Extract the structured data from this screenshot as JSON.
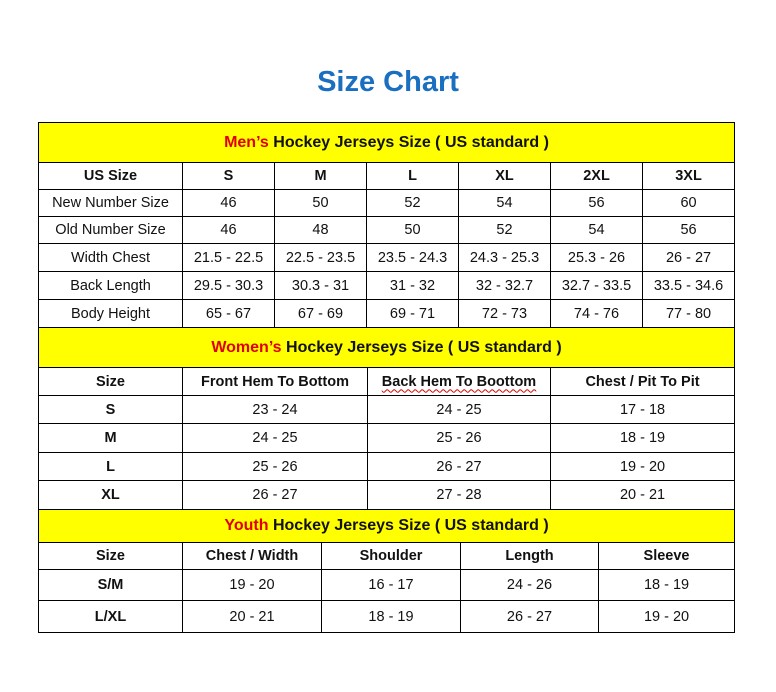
{
  "title": "Size Chart",
  "men": {
    "title_highlight": "Men’s",
    "title_rest": " Hockey Jerseys Size ( US standard )",
    "headers": [
      "US Size",
      "S",
      "M",
      "L",
      "XL",
      "2XL",
      "3XL"
    ],
    "rows": [
      [
        "New Number Size",
        "46",
        "50",
        "52",
        "54",
        "56",
        "60"
      ],
      [
        "Old Number Size",
        "46",
        "48",
        "50",
        "52",
        "54",
        "56"
      ],
      [
        "Width Chest",
        "21.5 - 22.5",
        "22.5 - 23.5",
        "23.5 - 24.3",
        "24.3 - 25.3",
        "25.3 - 26",
        "26 - 27"
      ],
      [
        "Back Length",
        "29.5 - 30.3",
        "30.3 - 31",
        "31 - 32",
        "32 - 32.7",
        "32.7 - 33.5",
        "33.5 - 34.6"
      ],
      [
        "Body Height",
        "65 - 67",
        "67 - 69",
        "69 - 71",
        "72 - 73",
        "74 - 76",
        "77 - 80"
      ]
    ]
  },
  "women": {
    "title_highlight": "Women’s",
    "title_rest": " Hockey Jerseys Size ( US standard )",
    "headers": [
      "Size",
      "Front Hem To Bottom",
      "Back Hem To Boottom",
      "Chest / Pit To Pit"
    ],
    "rows": [
      [
        "S",
        "23 - 24",
        "24 - 25",
        "17 - 18"
      ],
      [
        "M",
        "24 - 25",
        "25 - 26",
        "18 - 19"
      ],
      [
        "L",
        "25 - 26",
        "26 - 27",
        "19 - 20"
      ],
      [
        "XL",
        "26 - 27",
        "27 - 28",
        "20 - 21"
      ]
    ]
  },
  "youth": {
    "title_highlight": "Youth",
    "title_rest": " Hockey Jerseys Size ( US standard )",
    "headers": [
      "Size",
      "Chest / Width",
      "Shoulder",
      "Length",
      "Sleeve"
    ],
    "rows": [
      [
        "S/M",
        "19 - 20",
        "16 - 17",
        "24 - 26",
        "18 - 19"
      ],
      [
        "L/XL",
        "20 - 21",
        "18 - 19",
        "26 - 27",
        "19 - 20"
      ]
    ]
  },
  "colors": {
    "title": "#1a6fc0",
    "band": "#ffff00",
    "highlight": "#e00000"
  }
}
